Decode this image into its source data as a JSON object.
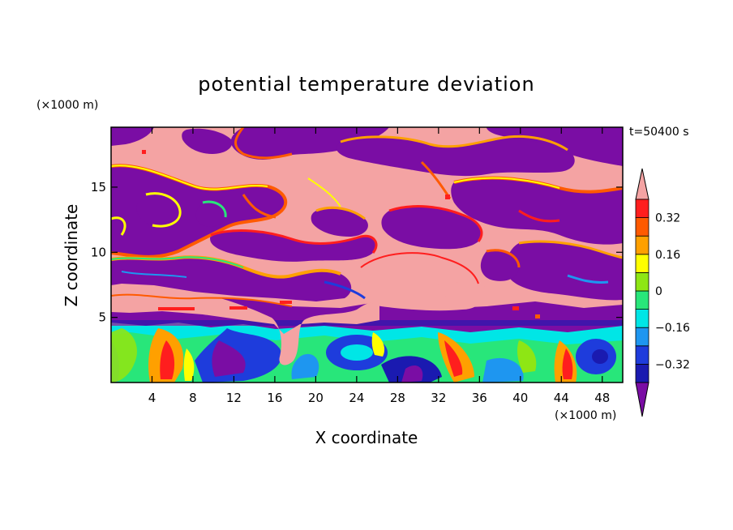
{
  "chart_data": {
    "type": "heatmap",
    "title": "potential temperature deviation",
    "xlabel": "X coordinate",
    "ylabel": "Z coordinate",
    "x_unit": "(×1000 m)",
    "y_unit": "(×1000 m)",
    "time_label": "t=50400 s",
    "xlim": [
      0,
      50
    ],
    "ylim": [
      0,
      19.6
    ],
    "x_ticks": [
      4,
      8,
      12,
      16,
      20,
      24,
      28,
      32,
      36,
      40,
      44,
      48
    ],
    "y_ticks": [
      5,
      10,
      15
    ],
    "colorbar": {
      "labels": [
        {
          "value": 0.32,
          "text": "0.32"
        },
        {
          "value": 0.16,
          "text": "0.16"
        },
        {
          "value": 0,
          "text": "0"
        },
        {
          "value": -0.16,
          "text": "−0.16"
        },
        {
          "value": -0.32,
          "text": "−0.32"
        }
      ],
      "levels": [
        -0.4,
        -0.32,
        -0.24,
        -0.16,
        -0.08,
        0,
        0.08,
        0.16,
        0.24,
        0.32,
        0.4
      ],
      "colors": [
        "#7a0da4",
        "#1a1ab0",
        "#1e3cdc",
        "#1e96f0",
        "#00e6e6",
        "#28e67a",
        "#8ee614",
        "#ffff00",
        "#ffa000",
        "#ff5a00",
        "#ff1e1e",
        "#f4a3a3"
      ]
    }
  }
}
